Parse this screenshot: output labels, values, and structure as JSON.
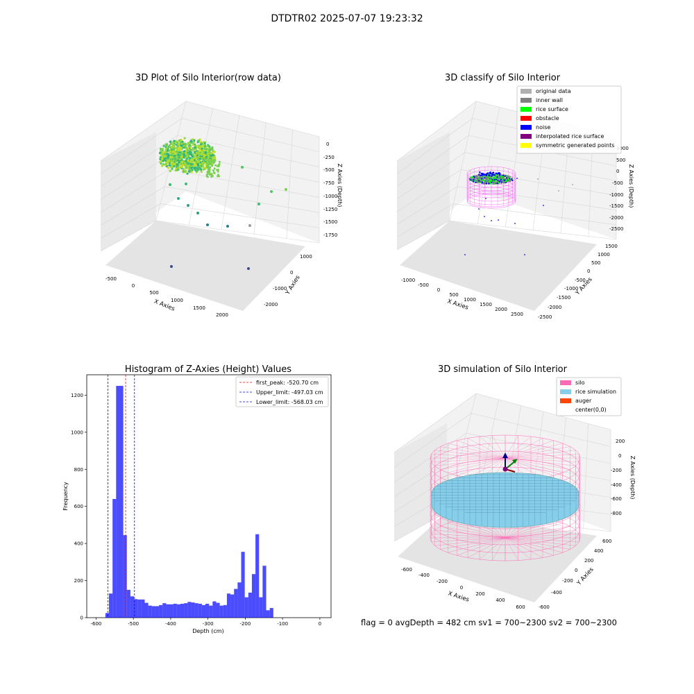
{
  "figure": {
    "title": "DTDTR02 2025-07-07 19:23:32",
    "footer": "flag = 0     avgDepth = 482 cm  sv1 = 700~2300  sv2 = 700~2300"
  },
  "panels": {
    "raw": {
      "title": "3D Plot of Silo Interior(row data)",
      "xlabel": "X Axies",
      "ylabel": "Y Axies",
      "zlabel": "Z Axies (Depth)",
      "xticks": [
        "-500",
        "0",
        "500",
        "1000",
        "1500",
        "2000"
      ],
      "yticks": [
        "-2000",
        "-1000",
        "0",
        "1000"
      ],
      "zticks": [
        "0",
        "-250",
        "-500",
        "-750",
        "-1000",
        "-1250",
        "-1500",
        "-1750"
      ]
    },
    "classify": {
      "title": "3D classify of Silo Interior",
      "xlabel": "X Axies",
      "ylabel": "Y Axies",
      "zlabel": "Z Axies (Depth)",
      "xticks": [
        "-1000",
        "-500",
        "0",
        "500",
        "1000",
        "1500",
        "2000",
        "2500"
      ],
      "yticks": [
        "-2500",
        "-2000",
        "-1500",
        "-1000",
        "-500",
        "0",
        "500",
        "1000",
        "1500"
      ],
      "zticks": [
        "1000",
        "500",
        "0",
        "-500",
        "-1000",
        "-1500",
        "-2000",
        "-2500"
      ],
      "legend": [
        {
          "label": "original data",
          "color": "#b0b0b0"
        },
        {
          "label": "inner wall",
          "color": "#808080"
        },
        {
          "label": "rice surface",
          "color": "#00ff00"
        },
        {
          "label": "obstacle",
          "color": "#ff0000"
        },
        {
          "label": "noise",
          "color": "#0000ff"
        },
        {
          "label": "interpolated rice surface",
          "color": "#800080"
        },
        {
          "label": "symmetric generated points",
          "color": "#ffff00"
        }
      ]
    },
    "simulation": {
      "title": "3D simulation of Silo Interior",
      "xlabel": "X Axies",
      "ylabel": "Y Axies",
      "zlabel": "Z Axies (Depth)",
      "xticks": [
        "-600",
        "-400",
        "-200",
        "0",
        "200",
        "400",
        "600"
      ],
      "yticks": [
        "-600",
        "-400",
        "-200",
        "0",
        "200",
        "400",
        "600"
      ],
      "zticks": [
        "200",
        "0",
        "-200",
        "-400",
        "-600",
        "-800"
      ],
      "legend": [
        {
          "label": "silo",
          "color": "#ff69b4"
        },
        {
          "label": "rice simulation",
          "color": "#87ceeb"
        },
        {
          "label": "auger",
          "color": "#ff4500"
        },
        {
          "label": "center(0,0)",
          "color": "#ffffff"
        }
      ]
    }
  },
  "chart_data": [
    {
      "type": "scatter",
      "title": "3D Plot of Silo Interior(row data)",
      "xlabel": "X Axies",
      "ylabel": "Y Axies",
      "zlabel": "Z Axies (Depth)",
      "xlim": [
        -600,
        2200
      ],
      "ylim": [
        -2300,
        1300
      ],
      "zlim": [
        -1850,
        100
      ],
      "grid": true
    },
    {
      "type": "scatter",
      "title": "3D classify of Silo Interior",
      "xlabel": "X Axies",
      "ylabel": "Y Axies",
      "zlabel": "Z Axies (Depth)",
      "series": [
        {
          "name": "original data"
        },
        {
          "name": "inner wall"
        },
        {
          "name": "rice surface"
        },
        {
          "name": "obstacle"
        },
        {
          "name": "noise"
        },
        {
          "name": "interpolated rice surface"
        },
        {
          "name": "symmetric generated points"
        }
      ],
      "legend": "top-right",
      "grid": true
    },
    {
      "type": "bar",
      "title": "Histogram of Z-Axies (Height) Values",
      "xlabel": "Depth (cm)",
      "ylabel": "Frequency",
      "xlim": [
        -625,
        30
      ],
      "ylim": [
        0,
        1310
      ],
      "xticks": [
        -600,
        -500,
        -400,
        -300,
        -200,
        -100,
        0
      ],
      "yticks": [
        0,
        200,
        400,
        600,
        800,
        1000,
        1200
      ],
      "bin_start": -575,
      "bin_width": 9.58,
      "values": [
        25,
        130,
        640,
        1250,
        1250,
        445,
        150,
        115,
        100,
        98,
        98,
        80,
        65,
        62,
        62,
        68,
        78,
        72,
        72,
        75,
        72,
        75,
        78,
        85,
        82,
        78,
        75,
        68,
        75,
        65,
        88,
        80,
        65,
        68,
        130,
        125,
        155,
        190,
        355,
        110,
        135,
        235,
        450,
        110,
        280,
        40,
        52
      ],
      "bar_color": "#0000ff",
      "lines": [
        {
          "label": "first_peak: -520.70 cm",
          "x": -520.7,
          "color": "#ff0000"
        },
        {
          "label": "Upper_limit: -497.03 cm",
          "x": -497.03,
          "color": "#0000ff"
        },
        {
          "label": "Lower_limit: -568.03 cm",
          "x": -568.03,
          "color": "#0000ff"
        }
      ],
      "legend": "top-right"
    },
    {
      "type": "scatter",
      "title": "3D simulation of Silo Interior",
      "xlabel": "X Axies",
      "ylabel": "Y Axies",
      "zlabel": "Z Axies (Depth)",
      "xlim": [
        -700,
        700
      ],
      "ylim": [
        -700,
        700
      ],
      "zlim": [
        -900,
        350
      ],
      "series": [
        {
          "name": "silo"
        },
        {
          "name": "rice simulation"
        },
        {
          "name": "auger"
        },
        {
          "name": "center(0,0)"
        }
      ],
      "legend": "top-right",
      "grid": true
    }
  ]
}
